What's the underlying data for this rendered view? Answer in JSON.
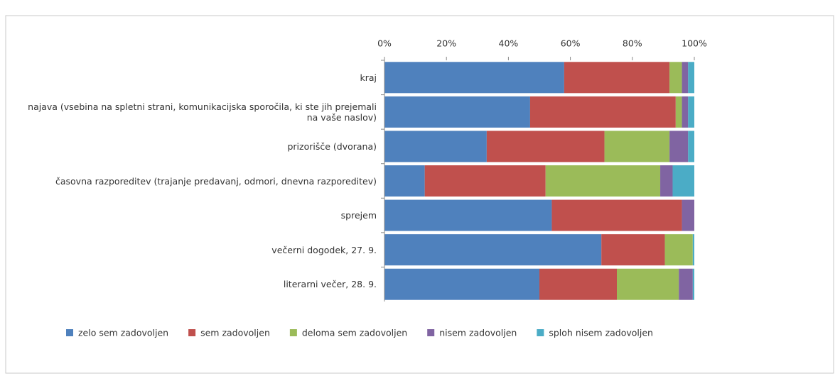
{
  "chart_data": {
    "type": "stacked-bar-horizontal",
    "categories": [
      "kraj",
      "najava (vsebina na spletni strani, komunikacijska sporočila, ki ste jih prejemali na vaše naslov)",
      "prizorišče (dvorana)",
      "časovna razporeditev (trajanje predavanj, odmori, dnevna razporeditev)",
      "sprejem",
      "večerni dogodek, 27. 9.",
      "literarni večer, 28. 9."
    ],
    "series": [
      {
        "name": "zelo sem zadovoljen",
        "color": "#4f81bd",
        "values": [
          58,
          47,
          33,
          13,
          54,
          70,
          50
        ]
      },
      {
        "name": "sem zadovoljen",
        "color": "#c0504d",
        "values": [
          34,
          47,
          38,
          39,
          42,
          20.5,
          25
        ]
      },
      {
        "name": "deloma sem zadovoljen",
        "color": "#9bbb59",
        "values": [
          4,
          2,
          21,
          37,
          0,
          9,
          20
        ]
      },
      {
        "name": "nisem zadovoljen",
        "color": "#8064a2",
        "values": [
          2,
          2,
          6,
          4,
          4,
          0,
          4.5
        ]
      },
      {
        "name": "sploh nisem zadovoljen",
        "color": "#4bacc6",
        "values": [
          2,
          2,
          2,
          7,
          0,
          0.5,
          0.5
        ]
      }
    ],
    "xlim": [
      0,
      100
    ],
    "xticks": [
      {
        "value": 0,
        "label": "0%"
      },
      {
        "value": 20,
        "label": "20%"
      },
      {
        "value": 40,
        "label": "40%"
      },
      {
        "value": 60,
        "label": "60%"
      },
      {
        "value": 80,
        "label": "80%"
      },
      {
        "value": 100,
        "label": "100%"
      }
    ],
    "grid": false,
    "legend": "bottom"
  }
}
